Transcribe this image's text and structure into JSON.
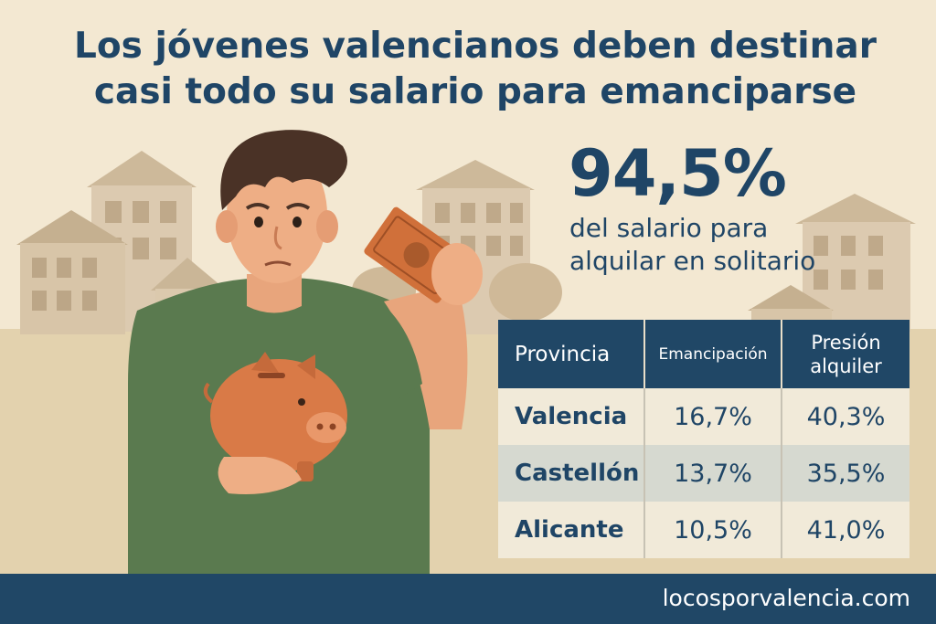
{
  "headline": {
    "line1": "Los jóvenes valencianos deben destinar",
    "line2": "casi todo su salario para emanciparse"
  },
  "highlight": {
    "value": "94,5%",
    "line1": "del salario para",
    "line2": "alquilar en solitario"
  },
  "table": {
    "headers": {
      "provincia": "Provincia",
      "emancipacion": "Emancipación",
      "presion_line1": "Presión",
      "presion_line2": "alquiler"
    },
    "rows": [
      {
        "provincia": "Valencia",
        "emancipacion": "16,7%",
        "presion": "40,3%"
      },
      {
        "provincia": "Castellón",
        "emancipacion": "13,7%",
        "presion": "35,5%"
      },
      {
        "provincia": "Alicante",
        "emancipacion": "10,5%",
        "presion": "41,0%"
      }
    ]
  },
  "footer": {
    "site": "locosporvalencia.com"
  },
  "colors": {
    "background": "#f3e8d2",
    "navy": "#204766",
    "shirt_green": "#5a7a4f",
    "piggy_orange": "#d97a47",
    "banknote_orange": "#d0703a"
  }
}
